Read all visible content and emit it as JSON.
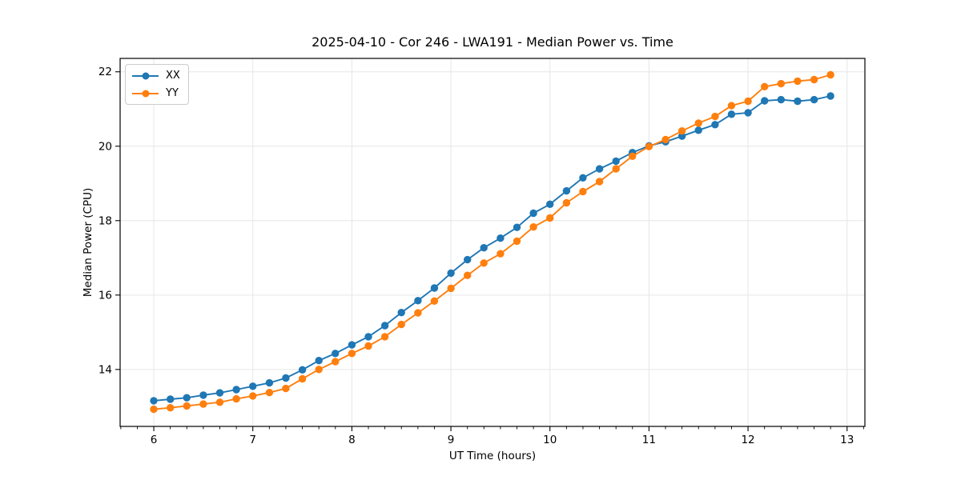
{
  "chart_data": {
    "type": "line",
    "title": "2025-04-10 - Cor 246 - LWA191 - Median Power vs. Time",
    "xlabel": "UT Time (hours)",
    "ylabel": "Median Power (CPU)",
    "xlim": [
      5.66,
      13.18
    ],
    "ylim": [
      12.47,
      22.36
    ],
    "x_ticks": [
      6,
      7,
      8,
      9,
      10,
      11,
      12,
      13
    ],
    "y_ticks": [
      14,
      16,
      18,
      20,
      22
    ],
    "x_minor_step": 0.166667,
    "grid": true,
    "grid_color": "#e6e6e6",
    "spine_color": "#000000",
    "tick_color": "#000000",
    "legend_position": "upper left",
    "x": [
      6.0,
      6.167,
      6.333,
      6.5,
      6.667,
      6.833,
      7.0,
      7.167,
      7.333,
      7.5,
      7.667,
      7.833,
      8.0,
      8.167,
      8.333,
      8.5,
      8.667,
      8.833,
      9.0,
      9.167,
      9.333,
      9.5,
      9.667,
      9.833,
      10.0,
      10.167,
      10.333,
      10.5,
      10.667,
      10.833,
      11.0,
      11.167,
      11.333,
      11.5,
      11.667,
      11.833,
      12.0,
      12.167,
      12.333,
      12.5,
      12.667,
      12.833
    ],
    "series": [
      {
        "name": "XX",
        "color": "#1f77b4",
        "values": [
          13.16,
          13.2,
          13.24,
          13.31,
          13.37,
          13.46,
          13.55,
          13.64,
          13.77,
          13.99,
          14.24,
          14.43,
          14.66,
          14.88,
          15.18,
          15.53,
          15.85,
          16.19,
          16.59,
          16.95,
          17.27,
          17.53,
          17.82,
          18.2,
          18.44,
          18.8,
          19.15,
          19.39,
          19.6,
          19.83,
          20.01,
          20.12,
          20.27,
          20.43,
          20.58,
          20.86,
          20.9,
          21.22,
          21.25,
          21.21,
          21.25,
          21.35
        ]
      },
      {
        "name": "YY",
        "color": "#ff7f0e",
        "values": [
          12.93,
          12.97,
          13.02,
          13.07,
          13.12,
          13.21,
          13.29,
          13.38,
          13.49,
          13.75,
          14.0,
          14.21,
          14.43,
          14.63,
          14.88,
          15.21,
          15.52,
          15.84,
          16.18,
          16.53,
          16.86,
          17.11,
          17.45,
          17.83,
          18.07,
          18.48,
          18.78,
          19.05,
          19.39,
          19.73,
          19.99,
          20.18,
          20.41,
          20.62,
          20.8,
          21.09,
          21.21,
          21.6,
          21.68,
          21.75,
          21.79,
          21.92
        ]
      }
    ]
  },
  "legend": {
    "items": [
      {
        "label": "XX"
      },
      {
        "label": "YY"
      }
    ]
  }
}
